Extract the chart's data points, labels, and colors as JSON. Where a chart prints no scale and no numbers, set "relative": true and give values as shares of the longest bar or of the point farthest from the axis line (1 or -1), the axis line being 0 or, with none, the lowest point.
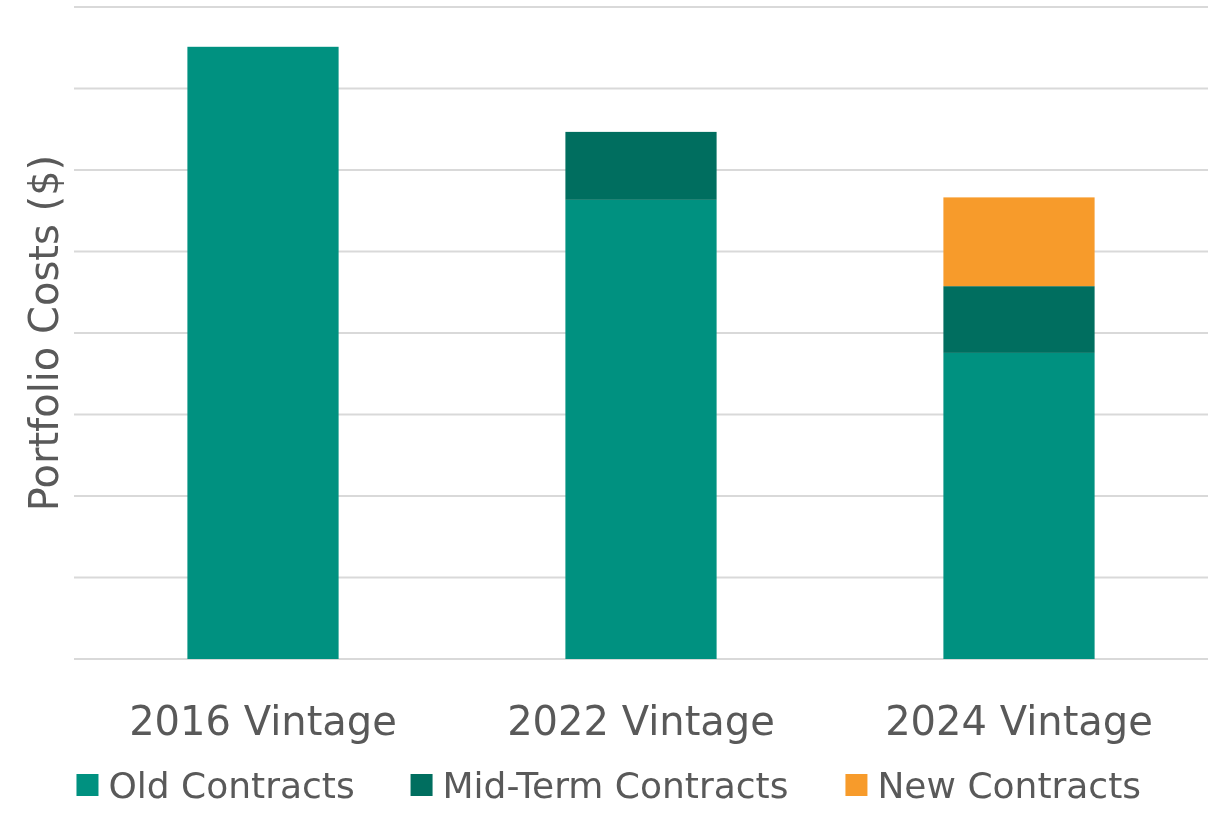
{
  "chart_data": {
    "type": "bar",
    "ylabel": "Portfolio Costs ($)",
    "categories": [
      "2016 Vintage",
      "2022 Vintage",
      "2024 Vintage"
    ],
    "stacked": true,
    "relative": true,
    "grid": true,
    "legend": "bottom",
    "series": [
      {
        "name": "Old Contracts",
        "color": "#009180",
        "values": [
          1,
          0.75,
          0.5
        ]
      },
      {
        "name": "Mid-Term Contracts",
        "color": "#006e5f",
        "values": [
          null,
          0.111,
          0.109
        ]
      },
      {
        "name": "New Contracts",
        "color": "#f79b2b",
        "values": [
          null,
          null,
          0.145
        ]
      }
    ]
  }
}
